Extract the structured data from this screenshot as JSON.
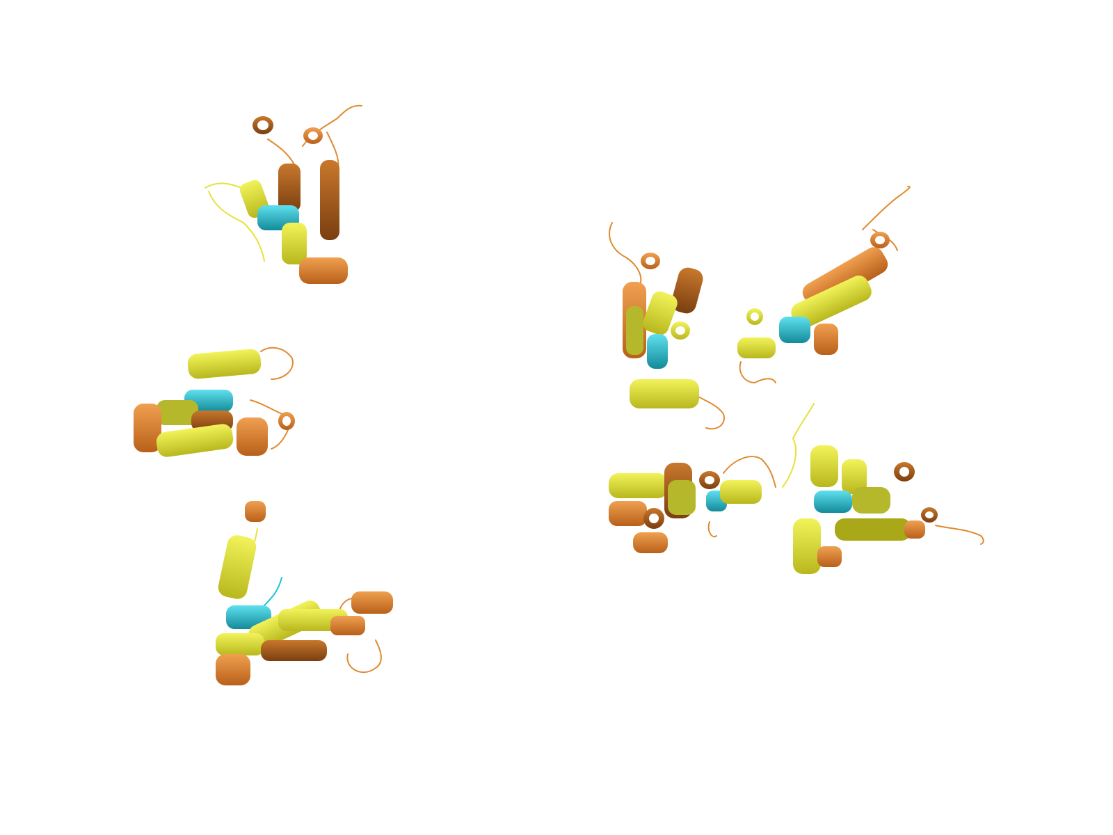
{
  "image": {
    "background": "#ffffff",
    "subject": "protein-cartoon-ensemble"
  },
  "palette": {
    "yellow_helix": "#e3e62a",
    "yellow_dark": "#a8a818",
    "olive_helix": "#b5b82a",
    "orange_helix": "#e6862a",
    "orange_dark": "#b8601a",
    "brown_helix": "#a85a1c",
    "cyan_helix": "#1fc2d6",
    "cyan_dark": "#138a99",
    "coil_orange": "#e08a30",
    "coil_yellow": "#e6e23a"
  },
  "models": [
    {
      "id": "model-1",
      "color_scheme": "yellow-orange-cyan"
    },
    {
      "id": "model-2",
      "color_scheme": "yellow-orange-cyan"
    },
    {
      "id": "model-3",
      "color_scheme": "yellow-orange-cyan"
    },
    {
      "id": "model-4",
      "color_scheme": "yellow-orange-cyan"
    },
    {
      "id": "model-5",
      "color_scheme": "yellow-orange-cyan"
    },
    {
      "id": "model-6",
      "color_scheme": "yellow-orange-cyan"
    },
    {
      "id": "model-7",
      "color_scheme": "yellow-orange-cyan"
    }
  ]
}
